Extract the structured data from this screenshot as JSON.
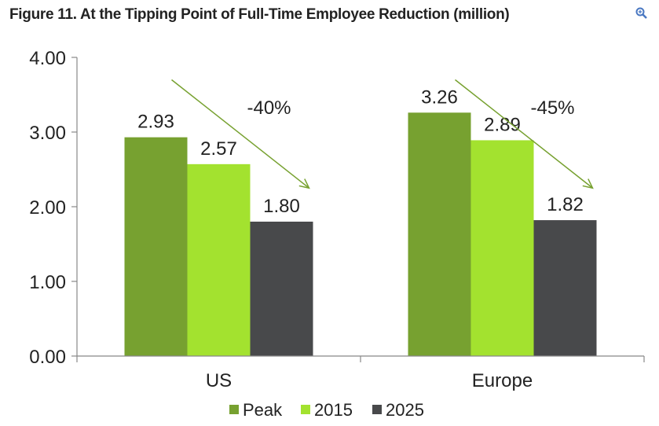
{
  "header": {
    "title": "Figure 11. At the Tipping Point of Full-Time Employee Reduction (million)"
  },
  "zoom_icon": "magnifier-plus-icon",
  "chart_data": {
    "type": "bar",
    "title": "Figure 11. At the Tipping Point of Full-Time Employee Reduction (million)",
    "xlabel": "",
    "ylabel": "",
    "categories": [
      "US",
      "Europe"
    ],
    "series": [
      {
        "name": "Peak",
        "values": [
          2.93,
          3.26
        ],
        "labels": [
          "2.93",
          "3.26"
        ],
        "color": "#77a130"
      },
      {
        "name": "2015",
        "values": [
          2.57,
          2.89
        ],
        "labels": [
          "2.57",
          "2.89"
        ],
        "color": "#a3e22f"
      },
      {
        "name": "2025",
        "values": [
          1.8,
          1.82
        ],
        "labels": [
          "1.80",
          "1.82"
        ],
        "color": "#48494b"
      }
    ],
    "ylim": [
      0,
      4
    ],
    "yticks": [
      0,
      1,
      2,
      3,
      4
    ],
    "ytick_labels": [
      "0.00",
      "1.00",
      "2.00",
      "3.00",
      "4.00"
    ],
    "annotations": [
      {
        "category": "US",
        "text": "-40%"
      },
      {
        "category": "Europe",
        "text": "-45%"
      }
    ],
    "arrow_color": "#77a130",
    "legend": {
      "position": "bottom",
      "entries": [
        "Peak",
        "2015",
        "2025"
      ]
    },
    "grid": false
  }
}
